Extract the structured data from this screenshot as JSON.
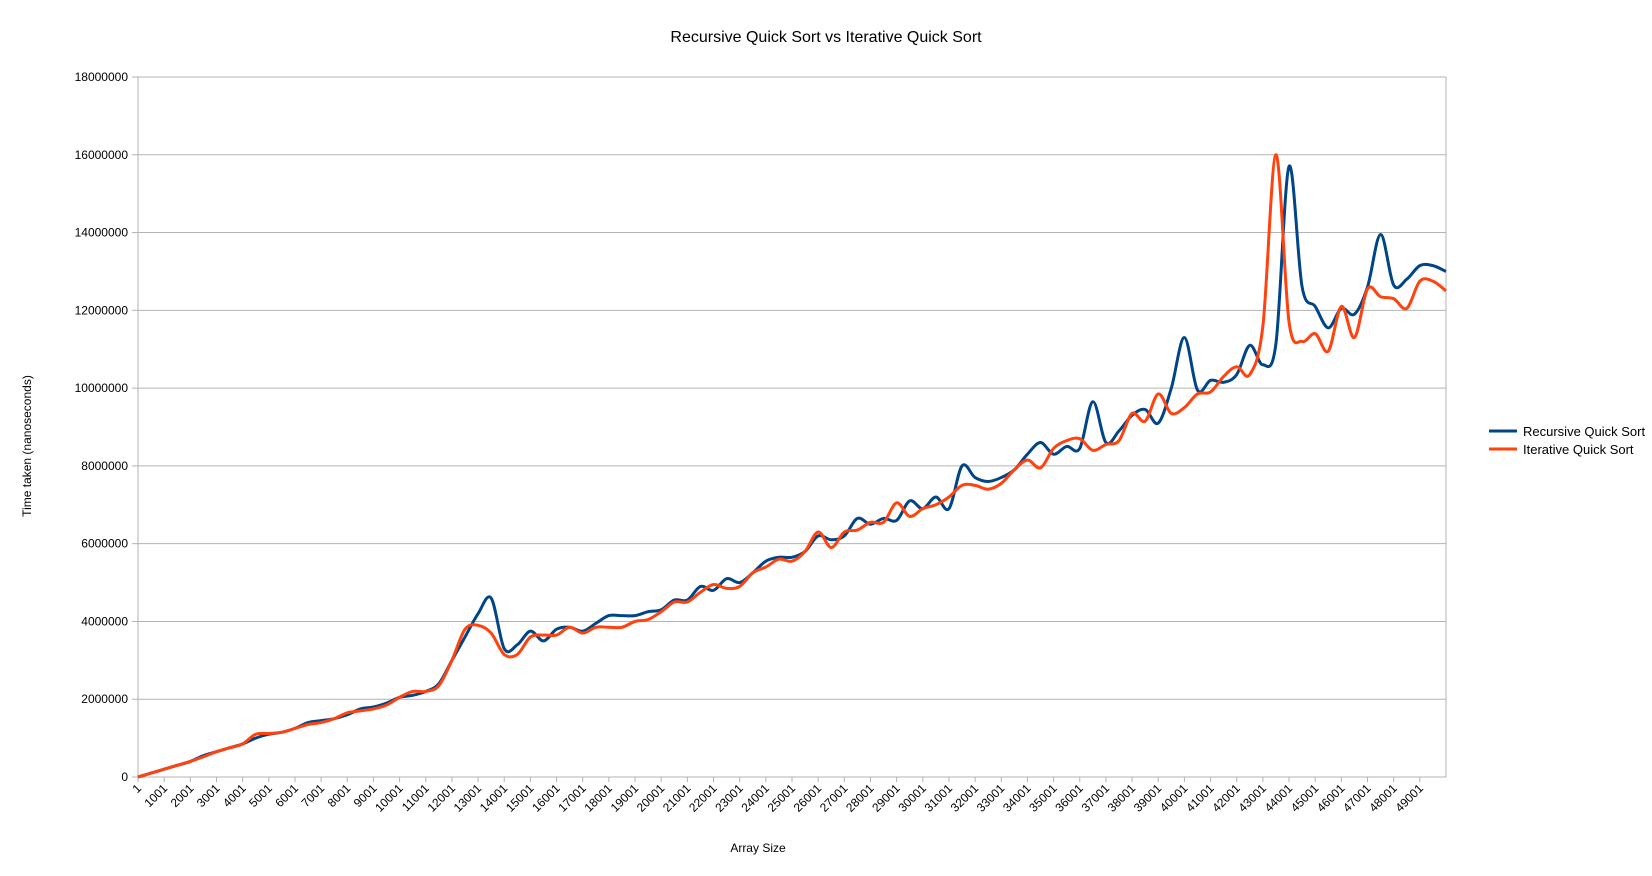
{
  "chart_data": {
    "type": "line",
    "title": "Recursive Quick Sort vs Iterative Quick Sort",
    "xlabel": "Array Size",
    "ylabel": "Time taken (nanoseconds)",
    "ylim": [
      0,
      18000000
    ],
    "y_ticks": [
      "0",
      "2000000",
      "4000000",
      "6000000",
      "8000000",
      "10000000",
      "12000000",
      "14000000",
      "16000000",
      "18000000"
    ],
    "x_tick_labels": [
      "1",
      "1001",
      "2001",
      "3001",
      "4001",
      "5001",
      "6001",
      "7001",
      "8001",
      "9001",
      "10001",
      "11001",
      "12001",
      "13001",
      "14001",
      "15001",
      "16001",
      "17001",
      "18001",
      "19001",
      "20001",
      "21001",
      "22001",
      "23001",
      "24001",
      "25001",
      "26001",
      "27001",
      "28001",
      "29001",
      "30001",
      "31001",
      "32001",
      "33001",
      "34001",
      "35001",
      "36001",
      "37001",
      "38001",
      "39001",
      "40001",
      "41001",
      "42001",
      "43001",
      "44001",
      "45001",
      "46001",
      "47001",
      "48001",
      "49001"
    ],
    "x": [
      1,
      501,
      1001,
      1501,
      2001,
      2501,
      3001,
      3501,
      4001,
      4501,
      5001,
      5501,
      6001,
      6501,
      7001,
      7501,
      8001,
      8501,
      9001,
      9501,
      10001,
      10501,
      11001,
      11501,
      12001,
      12501,
      13001,
      13501,
      14001,
      14501,
      15001,
      15501,
      16001,
      16501,
      17001,
      17501,
      18001,
      18501,
      19001,
      19501,
      20001,
      20501,
      21001,
      21501,
      22001,
      22501,
      23001,
      23501,
      24001,
      24501,
      25001,
      25501,
      26001,
      26501,
      27001,
      27501,
      28001,
      28501,
      29001,
      29501,
      30001,
      30501,
      31001,
      31501,
      32001,
      32501,
      33001,
      33501,
      34001,
      34501,
      35001,
      35501,
      36001,
      36501,
      37001,
      37501,
      38001,
      38501,
      39001,
      39501,
      40001,
      40501,
      41001,
      41501,
      42001,
      42501,
      43001,
      43501,
      44001,
      44501,
      45001,
      45501,
      46001,
      46501,
      47001,
      47501,
      48001,
      48501,
      49001,
      49501,
      50001
    ],
    "series": [
      {
        "name": "Recursive Quick Sort",
        "color": "#004586",
        "values": [
          0,
          100000,
          200000,
          300000,
          400000,
          550000,
          650000,
          750000,
          850000,
          1000000,
          1100000,
          1150000,
          1250000,
          1400000,
          1450000,
          1500000,
          1600000,
          1750000,
          1800000,
          1900000,
          2050000,
          2100000,
          2200000,
          2400000,
          3000000,
          3600000,
          4200000,
          4600000,
          3300000,
          3400000,
          3750000,
          3500000,
          3800000,
          3850000,
          3750000,
          3950000,
          4150000,
          4150000,
          4150000,
          4250000,
          4300000,
          4550000,
          4550000,
          4900000,
          4800000,
          5100000,
          5000000,
          5250000,
          5550000,
          5650000,
          5650000,
          5800000,
          6200000,
          6100000,
          6200000,
          6650000,
          6500000,
          6650000,
          6600000,
          7100000,
          6900000,
          7200000,
          6900000,
          8000000,
          7700000,
          7600000,
          7700000,
          7900000,
          8300000,
          8600000,
          8300000,
          8500000,
          8450000,
          9650000,
          8600000,
          8900000,
          9300000,
          9450000,
          9100000,
          10000000,
          11300000,
          9950000,
          10200000,
          10150000,
          10350000,
          11100000,
          10600000,
          11150000,
          15700000,
          12600000,
          12100000,
          11550000,
          12050000,
          11900000,
          12600000,
          13950000,
          12650000,
          12800000,
          13150000,
          13150000,
          13000000
        ]
      },
      {
        "name": "Iterative Quick Sort",
        "color": "#ff420e",
        "values": [
          0,
          100000,
          200000,
          300000,
          400000,
          520000,
          650000,
          750000,
          850000,
          1100000,
          1120000,
          1150000,
          1250000,
          1350000,
          1400000,
          1500000,
          1650000,
          1700000,
          1750000,
          1850000,
          2050000,
          2200000,
          2200000,
          2350000,
          3000000,
          3800000,
          3900000,
          3700000,
          3150000,
          3150000,
          3600000,
          3650000,
          3650000,
          3850000,
          3700000,
          3850000,
          3850000,
          3850000,
          4000000,
          4050000,
          4250000,
          4500000,
          4500000,
          4750000,
          4950000,
          4850000,
          4900000,
          5250000,
          5400000,
          5600000,
          5550000,
          5800000,
          6300000,
          5900000,
          6300000,
          6350000,
          6550000,
          6550000,
          7050000,
          6700000,
          6900000,
          7000000,
          7200000,
          7500000,
          7500000,
          7400000,
          7550000,
          7900000,
          8150000,
          7950000,
          8450000,
          8650000,
          8700000,
          8400000,
          8550000,
          8650000,
          9350000,
          9150000,
          9850000,
          9350000,
          9500000,
          9850000,
          9900000,
          10300000,
          10550000,
          10350000,
          11600000,
          16000000,
          11700000,
          11200000,
          11400000,
          10950000,
          12100000,
          11300000,
          12550000,
          12350000,
          12300000,
          12050000,
          12750000,
          12750000,
          12500000
        ]
      }
    ],
    "grid": true,
    "legend": "right"
  }
}
